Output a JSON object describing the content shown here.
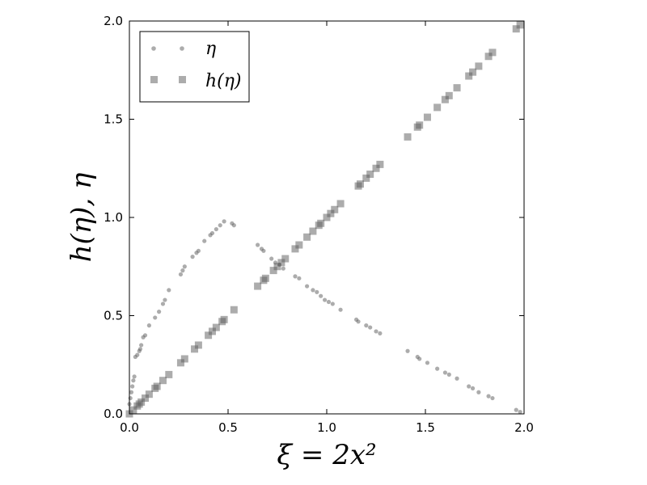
{
  "chart_data": {
    "type": "scatter",
    "xlabel": "ξ = 2x²",
    "ylabel": "h(η), η",
    "xlim": [
      0.0,
      2.0
    ],
    "ylim": [
      0.0,
      2.0
    ],
    "xticks": [
      "0.0",
      "0.5",
      "1.0",
      "1.5",
      "2.0"
    ],
    "yticks": [
      "0.0",
      "0.5",
      "1.0",
      "1.5",
      "2.0"
    ],
    "grid": false,
    "legend_position": "top-left",
    "series": [
      {
        "name": "η",
        "marker": "circle",
        "color": "#5a5a5a",
        "x": [
          0.0,
          0.005,
          0.01,
          0.015,
          0.02,
          0.025,
          0.03,
          0.04,
          0.05,
          0.055,
          0.06,
          0.07,
          0.08,
          0.1,
          0.13,
          0.15,
          0.17,
          0.18,
          0.2,
          0.26,
          0.27,
          0.28,
          0.32,
          0.34,
          0.35,
          0.38,
          0.41,
          0.42,
          0.44,
          0.46,
          0.48,
          0.52,
          0.53,
          0.65,
          0.67,
          0.68,
          0.72,
          0.74,
          0.76,
          0.78,
          0.84,
          0.86,
          0.9,
          0.93,
          0.95,
          0.97,
          0.99,
          1.01,
          1.03,
          1.07,
          1.15,
          1.16,
          1.2,
          1.22,
          1.25,
          1.27,
          1.41,
          1.46,
          1.47,
          1.51,
          1.56,
          1.6,
          1.62,
          1.66,
          1.72,
          1.74,
          1.77,
          1.82,
          1.84,
          1.96,
          1.98
        ],
        "y": [
          0.05,
          0.08,
          0.11,
          0.14,
          0.17,
          0.19,
          0.29,
          0.3,
          0.32,
          0.33,
          0.35,
          0.39,
          0.4,
          0.45,
          0.49,
          0.52,
          0.56,
          0.58,
          0.63,
          0.71,
          0.73,
          0.75,
          0.8,
          0.82,
          0.83,
          0.88,
          0.91,
          0.92,
          0.94,
          0.96,
          0.98,
          0.97,
          0.96,
          0.86,
          0.84,
          0.83,
          0.79,
          0.77,
          0.76,
          0.74,
          0.7,
          0.69,
          0.65,
          0.63,
          0.62,
          0.6,
          0.58,
          0.57,
          0.56,
          0.53,
          0.48,
          0.47,
          0.45,
          0.44,
          0.42,
          0.41,
          0.32,
          0.29,
          0.28,
          0.26,
          0.23,
          0.21,
          0.2,
          0.18,
          0.14,
          0.13,
          0.11,
          0.09,
          0.08,
          0.02,
          0.01
        ]
      },
      {
        "name": "h(η)",
        "marker": "square",
        "color": "#5a5a5a",
        "x": [
          0.0,
          0.02,
          0.04,
          0.05,
          0.06,
          0.08,
          0.1,
          0.13,
          0.14,
          0.17,
          0.2,
          0.26,
          0.28,
          0.33,
          0.35,
          0.4,
          0.42,
          0.44,
          0.47,
          0.48,
          0.53,
          0.65,
          0.68,
          0.69,
          0.73,
          0.75,
          0.77,
          0.79,
          0.84,
          0.86,
          0.9,
          0.93,
          0.96,
          0.97,
          1.0,
          1.02,
          1.04,
          1.07,
          1.16,
          1.17,
          1.2,
          1.22,
          1.25,
          1.27,
          1.41,
          1.46,
          1.47,
          1.51,
          1.56,
          1.6,
          1.62,
          1.66,
          1.72,
          1.74,
          1.77,
          1.82,
          1.84,
          1.96,
          1.98
        ],
        "y": [
          0.0,
          0.02,
          0.04,
          0.05,
          0.06,
          0.08,
          0.1,
          0.13,
          0.14,
          0.17,
          0.2,
          0.26,
          0.28,
          0.33,
          0.35,
          0.4,
          0.42,
          0.44,
          0.47,
          0.48,
          0.53,
          0.65,
          0.68,
          0.69,
          0.73,
          0.75,
          0.77,
          0.79,
          0.84,
          0.86,
          0.9,
          0.93,
          0.96,
          0.97,
          1.0,
          1.02,
          1.04,
          1.07,
          1.16,
          1.17,
          1.2,
          1.22,
          1.25,
          1.27,
          1.41,
          1.46,
          1.47,
          1.51,
          1.56,
          1.6,
          1.62,
          1.66,
          1.72,
          1.74,
          1.77,
          1.82,
          1.84,
          1.96,
          1.98
        ]
      }
    ]
  }
}
